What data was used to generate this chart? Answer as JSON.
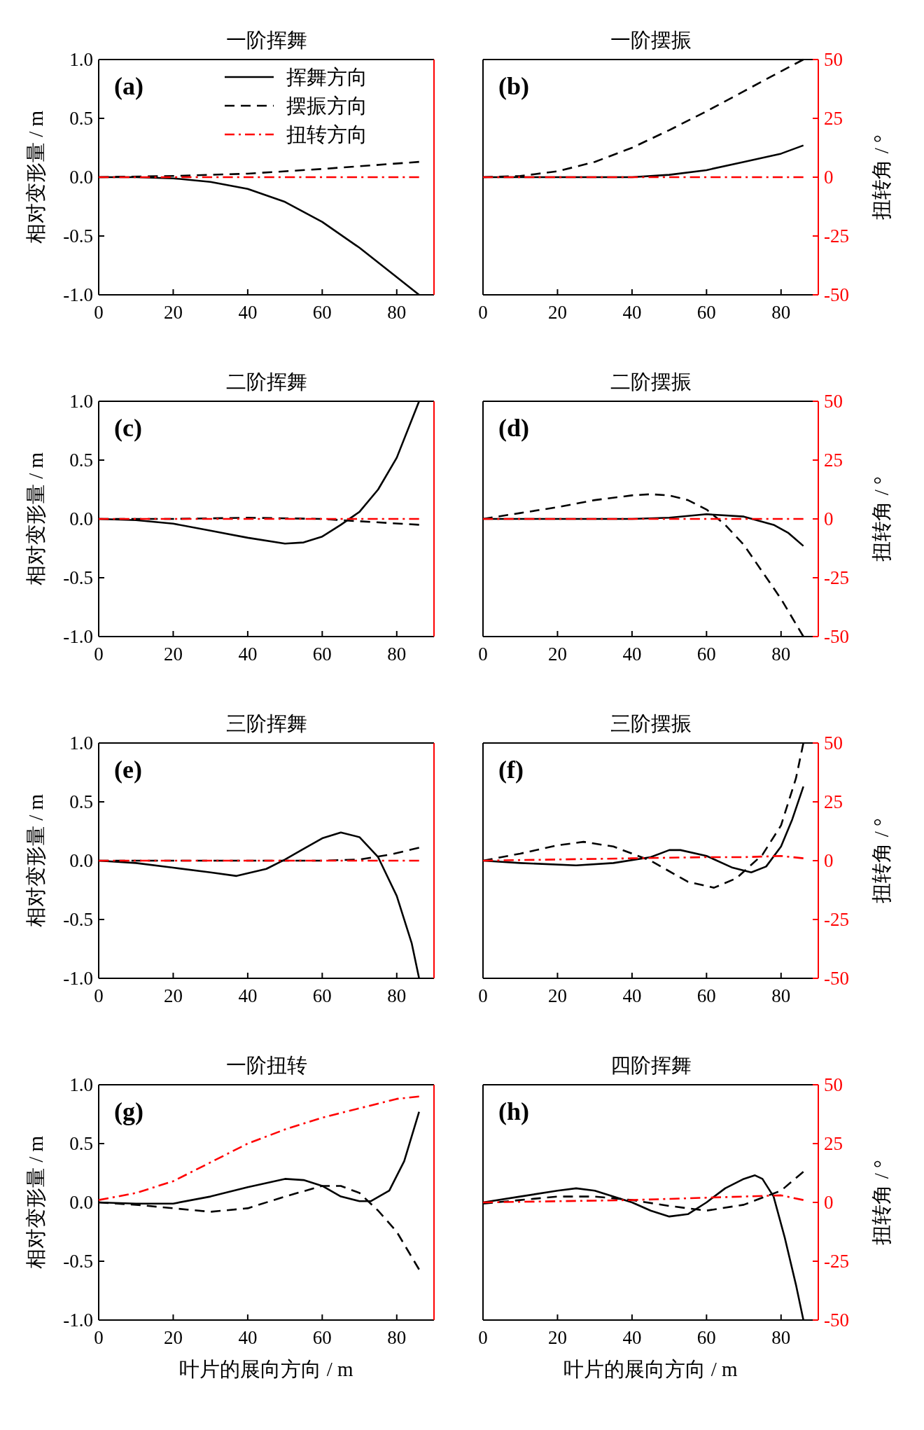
{
  "chart_data": [
    {
      "type": "line",
      "title": "一阶挥舞",
      "annotations": [
        "(a)"
      ],
      "ylabel": "相对变形量 / m",
      "legend": "top right",
      "tick_labels": [
        "x",
        "y"
      ],
      "xlim": [
        0,
        90
      ],
      "xticks": [
        0,
        20,
        40,
        60,
        80
      ],
      "ylim": [
        -1,
        1
      ],
      "yticks": [
        {
          "value": -1,
          "label": "-1.0"
        },
        {
          "value": -0.5,
          "label": "-0.5"
        },
        {
          "value": 0,
          "label": "0.0"
        },
        {
          "value": 0.5,
          "label": "0.5"
        },
        {
          "value": 1,
          "label": "1.0"
        }
      ],
      "y2lim": [
        -50,
        50
      ],
      "series": [
        {
          "name": "挥舞方向",
          "color": "#000000",
          "line_style": "solid",
          "x": [
            0,
            10,
            20,
            30,
            40,
            50,
            60,
            70,
            80,
            86
          ],
          "values": [
            0,
            0,
            -0.01,
            -0.04,
            -0.1,
            -0.21,
            -0.38,
            -0.6,
            -0.85,
            -1.0
          ]
        },
        {
          "name": "摆振方向",
          "color": "#000000",
          "line_style": "dashed",
          "x": [
            0,
            20,
            40,
            60,
            86
          ],
          "values": [
            0,
            0.01,
            0.03,
            0.07,
            0.13
          ]
        },
        {
          "name": "扭转方向",
          "color": "#ff0000",
          "line_style": "dashdot",
          "axis": "y2",
          "x": [
            0,
            20,
            40,
            60,
            86
          ],
          "values": [
            0,
            0,
            0,
            0,
            0
          ]
        }
      ]
    },
    {
      "type": "line",
      "title": "一阶摆振",
      "annotations": [
        "(b)"
      ],
      "y2label": "扭转角 / °",
      "tick_labels": [
        "x",
        "y2"
      ],
      "xlim": [
        0,
        90
      ],
      "xticks": [
        0,
        20,
        40,
        60,
        80
      ],
      "ylim": [
        -1,
        1
      ],
      "y2lim": [
        -50,
        50
      ],
      "y2ticks": [
        -50,
        -25,
        0,
        25,
        50
      ],
      "series": [
        {
          "color": "#000000",
          "line_style": "solid",
          "x": [
            0,
            20,
            40,
            50,
            60,
            70,
            80,
            86
          ],
          "values": [
            0,
            0,
            0,
            0.02,
            0.06,
            0.13,
            0.2,
            0.27
          ]
        },
        {
          "color": "#000000",
          "line_style": "dashed",
          "x": [
            0,
            10,
            20,
            30,
            40,
            50,
            60,
            70,
            80,
            86
          ],
          "values": [
            0,
            0.01,
            0.05,
            0.13,
            0.25,
            0.4,
            0.56,
            0.73,
            0.9,
            1.0
          ]
        },
        {
          "color": "#ff0000",
          "line_style": "dashdot",
          "axis": "y2",
          "x": [
            0,
            20,
            40,
            60,
            86
          ],
          "values": [
            0,
            0,
            0,
            0,
            0
          ]
        }
      ]
    },
    {
      "type": "line",
      "title": "二阶挥舞",
      "annotations": [
        "(c)"
      ],
      "ylabel": "相对变形量 / m",
      "tick_labels": [
        "x",
        "y"
      ],
      "xlim": [
        0,
        90
      ],
      "xticks": [
        0,
        20,
        40,
        60,
        80
      ],
      "ylim": [
        -1,
        1
      ],
      "yticks": [
        {
          "value": -1,
          "label": "-1.0"
        },
        {
          "value": -0.5,
          "label": "-0.5"
        },
        {
          "value": 0,
          "label": "0.0"
        },
        {
          "value": 0.5,
          "label": "0.5"
        },
        {
          "value": 1,
          "label": "1.0"
        }
      ],
      "y2lim": [
        -50,
        50
      ],
      "series": [
        {
          "color": "#000000",
          "line_style": "solid",
          "x": [
            0,
            10,
            20,
            30,
            40,
            50,
            55,
            60,
            65,
            70,
            75,
            80,
            86
          ],
          "values": [
            0,
            -0.01,
            -0.04,
            -0.1,
            -0.16,
            -0.21,
            -0.2,
            -0.15,
            -0.05,
            0.06,
            0.25,
            0.52,
            1.0
          ]
        },
        {
          "color": "#000000",
          "line_style": "dashed",
          "x": [
            0,
            20,
            40,
            60,
            70,
            86
          ],
          "values": [
            0,
            0,
            0.01,
            0,
            -0.02,
            -0.05
          ]
        },
        {
          "color": "#ff0000",
          "line_style": "dashdot",
          "axis": "y2",
          "x": [
            0,
            20,
            40,
            60,
            86
          ],
          "values": [
            0,
            0,
            0,
            0,
            0
          ]
        }
      ]
    },
    {
      "type": "line",
      "title": "二阶摆振",
      "annotations": [
        "(d)"
      ],
      "y2label": "扭转角 / °",
      "tick_labels": [
        "x",
        "y2"
      ],
      "xlim": [
        0,
        90
      ],
      "xticks": [
        0,
        20,
        40,
        60,
        80
      ],
      "ylim": [
        -1,
        1
      ],
      "y2lim": [
        -50,
        50
      ],
      "y2ticks": [
        -50,
        -25,
        0,
        25,
        50
      ],
      "series": [
        {
          "color": "#000000",
          "line_style": "solid",
          "x": [
            0,
            20,
            40,
            50,
            60,
            70,
            78,
            82,
            86
          ],
          "values": [
            0,
            0,
            0,
            0.01,
            0.04,
            0.02,
            -0.05,
            -0.12,
            -0.23
          ]
        },
        {
          "color": "#000000",
          "line_style": "dashed",
          "x": [
            0,
            10,
            20,
            30,
            40,
            45,
            50,
            55,
            60,
            65,
            70,
            75,
            80,
            86
          ],
          "values": [
            0,
            0.05,
            0.1,
            0.16,
            0.2,
            0.21,
            0.2,
            0.16,
            0.08,
            -0.05,
            -0.22,
            -0.45,
            -0.68,
            -1.0
          ]
        },
        {
          "color": "#ff0000",
          "line_style": "dashdot",
          "axis": "y2",
          "x": [
            0,
            20,
            40,
            60,
            86
          ],
          "values": [
            0,
            0,
            0,
            0,
            0
          ]
        }
      ]
    },
    {
      "type": "line",
      "title": "三阶挥舞",
      "annotations": [
        "(e)"
      ],
      "ylabel": "相对变形量 / m",
      "tick_labels": [
        "x",
        "y"
      ],
      "xlim": [
        0,
        90
      ],
      "xticks": [
        0,
        20,
        40,
        60,
        80
      ],
      "ylim": [
        -1,
        1
      ],
      "yticks": [
        {
          "value": -1,
          "label": "-1.0"
        },
        {
          "value": -0.5,
          "label": "-0.5"
        },
        {
          "value": 0,
          "label": "0.0"
        },
        {
          "value": 0.5,
          "label": "0.5"
        },
        {
          "value": 1,
          "label": "1.0"
        }
      ],
      "y2lim": [
        -50,
        50
      ],
      "series": [
        {
          "color": "#000000",
          "line_style": "solid",
          "x": [
            0,
            10,
            20,
            30,
            37,
            45,
            50,
            55,
            60,
            65,
            70,
            75,
            80,
            84,
            86
          ],
          "values": [
            0,
            -0.02,
            -0.06,
            -0.1,
            -0.13,
            -0.07,
            0.01,
            0.1,
            0.19,
            0.24,
            0.2,
            0.03,
            -0.3,
            -0.7,
            -1.0
          ]
        },
        {
          "color": "#000000",
          "line_style": "dashed",
          "x": [
            0,
            20,
            40,
            60,
            70,
            78,
            86
          ],
          "values": [
            0,
            0,
            0,
            0,
            0.01,
            0.05,
            0.11
          ]
        },
        {
          "color": "#ff0000",
          "line_style": "dashdot",
          "axis": "y2",
          "x": [
            0,
            20,
            40,
            60,
            86
          ],
          "values": [
            0,
            0,
            0,
            0,
            0
          ]
        }
      ]
    },
    {
      "type": "line",
      "title": "三阶摆振",
      "annotations": [
        "(f)"
      ],
      "y2label": "扭转角 / °",
      "tick_labels": [
        "x",
        "y2"
      ],
      "xlim": [
        0,
        90
      ],
      "xticks": [
        0,
        20,
        40,
        60,
        80
      ],
      "ylim": [
        -1,
        1
      ],
      "y2lim": [
        -50,
        50
      ],
      "y2ticks": [
        -50,
        -25,
        0,
        25,
        50
      ],
      "series": [
        {
          "color": "#000000",
          "line_style": "solid",
          "x": [
            0,
            10,
            25,
            35,
            45,
            50,
            53,
            60,
            67,
            72,
            76,
            80,
            83,
            86
          ],
          "values": [
            0,
            -0.02,
            -0.04,
            -0.02,
            0.03,
            0.09,
            0.09,
            0.04,
            -0.06,
            -0.1,
            -0.05,
            0.12,
            0.35,
            0.63
          ]
        },
        {
          "color": "#000000",
          "line_style": "dashed",
          "x": [
            0,
            10,
            20,
            27,
            35,
            45,
            55,
            62,
            68,
            75,
            80,
            84,
            86
          ],
          "values": [
            0,
            0.06,
            0.13,
            0.16,
            0.12,
            0,
            -0.18,
            -0.23,
            -0.15,
            0.05,
            0.3,
            0.7,
            1.0
          ]
        },
        {
          "color": "#ff0000",
          "line_style": "dashdot",
          "axis": "y2",
          "x": [
            0,
            20,
            40,
            60,
            70,
            80,
            86
          ],
          "values": [
            0,
            0.5,
            1,
            1.5,
            1.5,
            2,
            1
          ]
        }
      ]
    },
    {
      "type": "line",
      "title": "一阶扭转",
      "annotations": [
        "(g)"
      ],
      "ylabel": "相对变形量 / m",
      "xlabel": "叶片的展向方向 / m",
      "tick_labels": [
        "x",
        "y"
      ],
      "xlim": [
        0,
        90
      ],
      "xticks": [
        0,
        20,
        40,
        60,
        80
      ],
      "ylim": [
        -1,
        1
      ],
      "yticks": [
        {
          "value": -1,
          "label": "-1.0"
        },
        {
          "value": -0.5,
          "label": "-0.5"
        },
        {
          "value": 0,
          "label": "0.0"
        },
        {
          "value": 0.5,
          "label": "0.5"
        },
        {
          "value": 1,
          "label": "1.0"
        }
      ],
      "y2lim": [
        -50,
        50
      ],
      "series": [
        {
          "color": "#000000",
          "line_style": "solid",
          "x": [
            0,
            10,
            20,
            30,
            40,
            50,
            55,
            60,
            65,
            70,
            73,
            78,
            82,
            86
          ],
          "values": [
            0,
            -0.01,
            -0.01,
            0.05,
            0.13,
            0.2,
            0.19,
            0.14,
            0.05,
            0.01,
            0.01,
            0.1,
            0.35,
            0.77
          ]
        },
        {
          "color": "#000000",
          "line_style": "dashed",
          "x": [
            0,
            10,
            20,
            30,
            40,
            50,
            60,
            65,
            70,
            75,
            80,
            86
          ],
          "values": [
            0,
            -0.02,
            -0.05,
            -0.08,
            -0.05,
            0.05,
            0.14,
            0.14,
            0.08,
            -0.07,
            -0.25,
            -0.57
          ]
        },
        {
          "color": "#ff0000",
          "line_style": "dashdot",
          "axis": "y2",
          "x": [
            0,
            10,
            20,
            30,
            40,
            50,
            60,
            70,
            80,
            86
          ],
          "values": [
            1,
            4,
            9,
            17,
            25,
            31,
            36,
            40,
            44,
            45
          ]
        }
      ]
    },
    {
      "type": "line",
      "title": "四阶挥舞",
      "annotations": [
        "(h)"
      ],
      "y2label": "扭转角 / °",
      "xlabel": "叶片的展向方向 / m",
      "tick_labels": [
        "x",
        "y2"
      ],
      "xlim": [
        0,
        90
      ],
      "xticks": [
        0,
        20,
        40,
        60,
        80
      ],
      "ylim": [
        -1,
        1
      ],
      "y2lim": [
        -50,
        50
      ],
      "y2ticks": [
        -50,
        -25,
        0,
        25,
        50
      ],
      "series": [
        {
          "color": "#000000",
          "line_style": "solid",
          "x": [
            0,
            10,
            20,
            25,
            30,
            40,
            45,
            50,
            55,
            60,
            65,
            70,
            73,
            75,
            78,
            81,
            84,
            86
          ],
          "values": [
            0,
            0.05,
            0.1,
            0.12,
            0.1,
            0,
            -0.07,
            -0.12,
            -0.1,
            0,
            0.12,
            0.2,
            0.23,
            0.2,
            0.05,
            -0.3,
            -0.7,
            -1.0
          ]
        },
        {
          "color": "#000000",
          "line_style": "dashed",
          "x": [
            0,
            10,
            20,
            30,
            40,
            50,
            60,
            70,
            80,
            86
          ],
          "values": [
            -0.01,
            0.02,
            0.05,
            0.05,
            0.02,
            -0.03,
            -0.07,
            -0.02,
            0.1,
            0.26
          ]
        },
        {
          "color": "#ff0000",
          "line_style": "dashdot",
          "axis": "y2",
          "x": [
            0,
            20,
            40,
            60,
            80,
            86
          ],
          "values": [
            0,
            0.5,
            1,
            2,
            3,
            1
          ]
        }
      ]
    }
  ]
}
